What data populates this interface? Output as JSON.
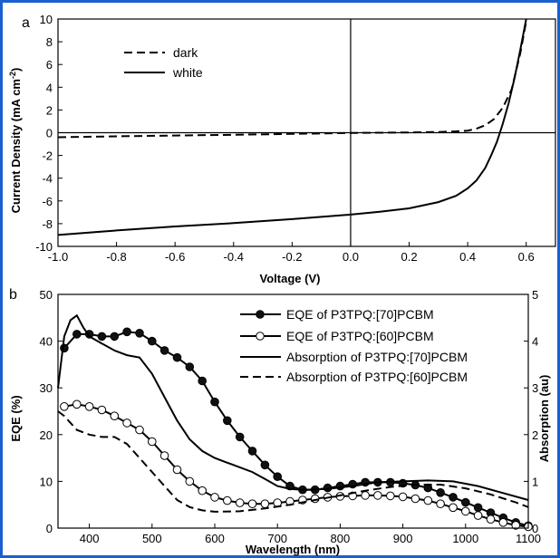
{
  "chart_data": [
    {
      "type": "line",
      "panel_label": "a",
      "xlabel": "Voltage (V)",
      "ylabel": "Current Density (mA cm",
      "ylabel_sup": "-2",
      "ylabel_end": ")",
      "xlim": [
        -1.0,
        0.7
      ],
      "ylim": [
        -10,
        10
      ],
      "xticks": [
        "-1.0",
        "-0.8",
        "-0.6",
        "-0.4",
        "-0.2",
        "0.0",
        "0.2",
        "0.4",
        "0.6"
      ],
      "yticks": [
        "-10",
        "-8",
        "-6",
        "-4",
        "-2",
        "0",
        "2",
        "4",
        "6",
        "8",
        "10"
      ],
      "legend_position": "top-left",
      "series": [
        {
          "name": "dark",
          "style": "dashed",
          "x": [
            -1.0,
            -0.8,
            -0.6,
            -0.4,
            -0.2,
            0.0,
            0.2,
            0.3,
            0.35,
            0.4,
            0.43,
            0.46,
            0.49,
            0.52,
            0.55,
            0.58,
            0.6
          ],
          "y": [
            -0.4,
            -0.32,
            -0.25,
            -0.18,
            -0.1,
            -0.02,
            0.02,
            0.06,
            0.1,
            0.18,
            0.35,
            0.65,
            1.2,
            2.2,
            3.8,
            7.0,
            9.8
          ]
        },
        {
          "name": "white",
          "style": "solid",
          "x": [
            -1.0,
            -0.8,
            -0.6,
            -0.4,
            -0.2,
            0.0,
            0.1,
            0.2,
            0.3,
            0.36,
            0.4,
            0.43,
            0.46,
            0.48,
            0.5,
            0.52,
            0.54,
            0.56,
            0.58,
            0.6
          ],
          "y": [
            -9.0,
            -8.6,
            -8.25,
            -7.95,
            -7.6,
            -7.2,
            -6.95,
            -6.65,
            -6.1,
            -5.55,
            -4.9,
            -4.2,
            -3.1,
            -2.0,
            -0.8,
            0.8,
            2.6,
            4.8,
            7.3,
            10.0
          ]
        }
      ]
    },
    {
      "type": "line",
      "panel_label": "b",
      "xlabel": "Wavelength (nm)",
      "ylabel": "EQE (%)",
      "ylabel_right": "Absorption (au)",
      "xlim": [
        350,
        1100
      ],
      "ylim": [
        0,
        50
      ],
      "ylim_right": [
        0,
        5
      ],
      "xticks": [
        "400",
        "500",
        "600",
        "700",
        "800",
        "900",
        "1000",
        "1100"
      ],
      "yticks": [
        "0",
        "10",
        "20",
        "30",
        "40",
        "50"
      ],
      "yticks_right": [
        "0",
        "1",
        "2",
        "3",
        "4",
        "5"
      ],
      "legend_position": "top-right",
      "series": [
        {
          "name": "EQE of P3TPQ:[70]PCBM",
          "style": "solid-filled-circles",
          "axis": "left",
          "x": [
            360,
            380,
            400,
            420,
            440,
            460,
            480,
            500,
            520,
            540,
            560,
            580,
            600,
            620,
            640,
            660,
            680,
            700,
            720,
            740,
            760,
            780,
            800,
            820,
            840,
            860,
            880,
            900,
            920,
            940,
            960,
            980,
            1000,
            1020,
            1040,
            1060,
            1080,
            1100
          ],
          "y": [
            38.5,
            41.5,
            41.5,
            41,
            41,
            42,
            41.7,
            40,
            38,
            36.5,
            34.5,
            31.5,
            27,
            23,
            19.5,
            16.5,
            13.5,
            11,
            9,
            8.2,
            8.2,
            8.6,
            9,
            9.4,
            9.8,
            9.8,
            9.8,
            9.6,
            9.2,
            8.6,
            7.6,
            6.6,
            5.5,
            4.4,
            3.3,
            2.2,
            1.2,
            0.5
          ]
        },
        {
          "name": "EQE of P3TPQ:[60]PCBM",
          "style": "solid-open-circles",
          "axis": "left",
          "x": [
            360,
            380,
            400,
            420,
            440,
            460,
            480,
            500,
            520,
            540,
            560,
            580,
            600,
            620,
            640,
            660,
            680,
            700,
            720,
            740,
            760,
            780,
            800,
            820,
            840,
            860,
            880,
            900,
            920,
            940,
            960,
            980,
            1000,
            1020,
            1040,
            1060,
            1080,
            1100
          ],
          "y": [
            26,
            26.5,
            26,
            25.3,
            24,
            22.5,
            21,
            18.5,
            15.5,
            12.5,
            10,
            8,
            6.6,
            5.9,
            5.4,
            5.2,
            5.2,
            5.4,
            5.7,
            6,
            6.3,
            6.6,
            6.8,
            6.9,
            7,
            7,
            6.9,
            6.7,
            6.3,
            5.9,
            5.2,
            4.4,
            3.6,
            2.7,
            1.9,
            1.2,
            0.6,
            0.3
          ]
        },
        {
          "name": "Absorption of P3TPQ:[70]PCBM",
          "style": "solid",
          "axis": "right",
          "x": [
            350,
            360,
            370,
            380,
            390,
            400,
            420,
            440,
            460,
            480,
            500,
            520,
            540,
            560,
            580,
            600,
            620,
            640,
            660,
            680,
            700,
            720,
            740,
            780,
            820,
            860,
            900,
            940,
            980,
            1020,
            1060,
            1100
          ],
          "y": [
            3.0,
            4.1,
            4.45,
            4.55,
            4.3,
            4.1,
            3.95,
            3.8,
            3.7,
            3.65,
            3.3,
            2.8,
            2.3,
            1.9,
            1.65,
            1.5,
            1.4,
            1.3,
            1.2,
            1.05,
            0.9,
            0.84,
            0.82,
            0.84,
            0.9,
            0.98,
            1.0,
            1.02,
            1.0,
            0.9,
            0.75,
            0.6
          ]
        },
        {
          "name": "Absorption of P3TPQ:[60]PCBM",
          "style": "dashed",
          "axis": "right",
          "x": [
            350,
            360,
            380,
            400,
            420,
            440,
            460,
            480,
            500,
            520,
            540,
            560,
            580,
            600,
            640,
            680,
            720,
            760,
            800,
            840,
            880,
            920,
            960,
            1000,
            1040,
            1080,
            1100
          ],
          "y": [
            2.5,
            2.4,
            2.1,
            2.0,
            1.95,
            1.95,
            1.8,
            1.5,
            1.2,
            0.9,
            0.6,
            0.45,
            0.38,
            0.35,
            0.36,
            0.42,
            0.5,
            0.6,
            0.7,
            0.8,
            0.88,
            0.93,
            0.93,
            0.85,
            0.72,
            0.55,
            0.45
          ]
        }
      ]
    }
  ]
}
